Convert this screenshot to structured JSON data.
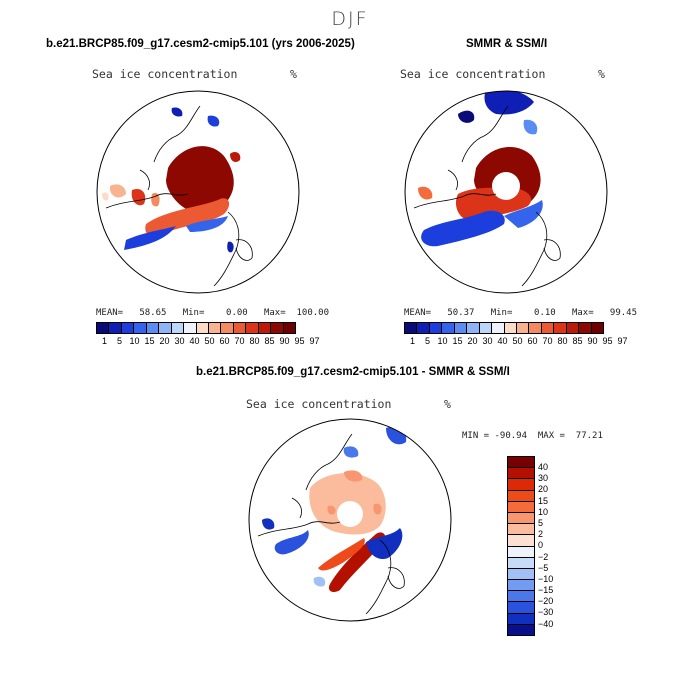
{
  "season": "DJF",
  "panel_model": {
    "title": "b.e21.BRCP85.f09_g17.cesm2-cmip5.101 (yrs 2006-2025)",
    "variable": "Sea ice concentration",
    "units": "%",
    "stats": "MEAN=   58.65   Min=    0.00   Max=  100.00"
  },
  "panel_obs": {
    "title": "SMMR & SSM/I",
    "variable": "Sea ice concentration",
    "units": "%",
    "stats": "MEAN=   50.37   Min=    0.10   Max=   99.45"
  },
  "panel_diff": {
    "title": "b.e21.BRCP85.f09_g17.cesm2-cmip5.101 - SMMR & SSM/I",
    "variable": "Sea ice concentration",
    "units": "%",
    "stats": "MIN = -90.94  MAX =  77.21"
  },
  "colorbar_conc": {
    "labels": [
      "1",
      "5",
      "10",
      "15",
      "20",
      "30",
      "40",
      "50",
      "60",
      "70",
      "80",
      "85",
      "90",
      "95",
      "97"
    ],
    "colors": [
      "#0a0a78",
      "#0f1eb4",
      "#1c3edc",
      "#3464ec",
      "#5a8cf2",
      "#8cb4f6",
      "#bcd6fa",
      "#eef2fa",
      "#fadcc8",
      "#f8b490",
      "#f48a62",
      "#ec5a34",
      "#dc3418",
      "#bc1a08",
      "#8c0800",
      "#6e0000"
    ]
  },
  "colorbar_diff": {
    "labels": [
      "40",
      "30",
      "20",
      "15",
      "10",
      "5",
      "2",
      "0",
      "−2",
      "−5",
      "−10",
      "−15",
      "−20",
      "−30",
      "−40"
    ],
    "colors": [
      "#780000",
      "#b41000",
      "#dc2a08",
      "#ee4a1a",
      "#f46c3c",
      "#f89670",
      "#fabc9c",
      "#fce0d2",
      "#eef2fa",
      "#c8dcf8",
      "#a0c0f6",
      "#729cf2",
      "#4a78ea",
      "#2a52dc",
      "#1230c0",
      "#08108c"
    ]
  }
}
